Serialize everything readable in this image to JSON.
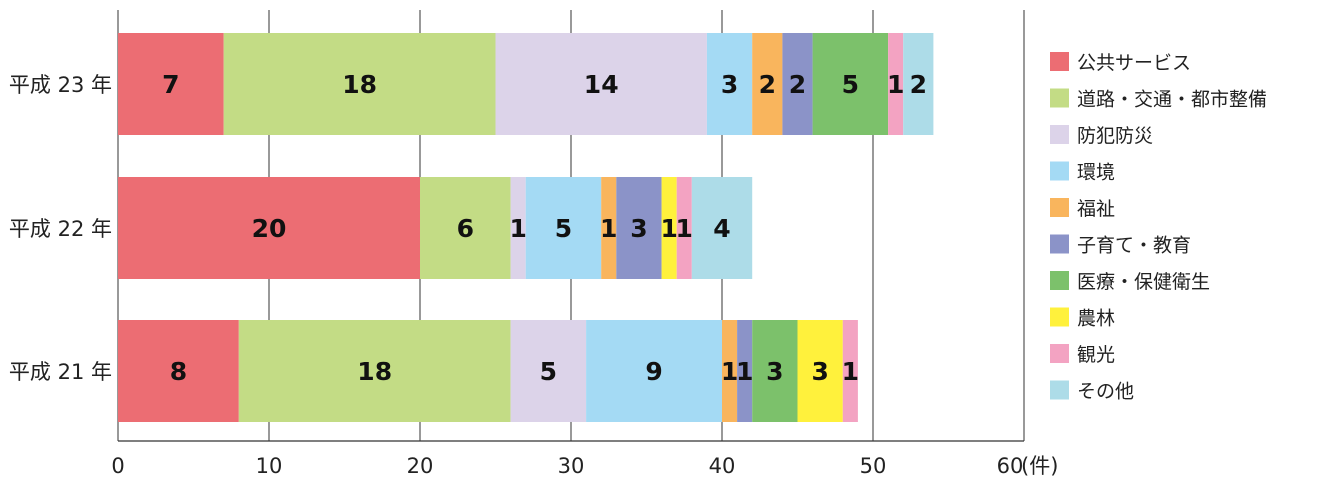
{
  "chart_data": {
    "type": "bar",
    "orientation": "horizontal",
    "stacked": true,
    "categories": [
      "平成 23 年",
      "平成 22 年",
      "平成 21 年"
    ],
    "series": [
      {
        "name": "公共サービス",
        "color": "#ec6d73",
        "values": [
          7,
          20,
          8
        ]
      },
      {
        "name": "道路・交通・都市整備",
        "color": "#c3dc85",
        "values": [
          18,
          6,
          18
        ]
      },
      {
        "name": "防犯防災",
        "color": "#dcd3e9",
        "values": [
          14,
          1,
          5
        ]
      },
      {
        "name": "環境",
        "color": "#a4daf4",
        "values": [
          3,
          5,
          9
        ]
      },
      {
        "name": "福祉",
        "color": "#f9b55d",
        "values": [
          2,
          1,
          1
        ]
      },
      {
        "name": "子育て・教育",
        "color": "#8b93c8",
        "values": [
          2,
          3,
          1
        ]
      },
      {
        "name": "医療・保健衛生",
        "color": "#7cc16b",
        "values": [
          5,
          0,
          3
        ]
      },
      {
        "name": "農林",
        "color": "#fff13c",
        "values": [
          0,
          1,
          3
        ]
      },
      {
        "name": "観光",
        "color": "#f3a3c2",
        "values": [
          1,
          1,
          1
        ]
      },
      {
        "name": "その他",
        "color": "#addce8",
        "values": [
          2,
          4,
          0
        ]
      }
    ],
    "xlim": [
      0,
      60
    ],
    "xticks": [
      "0",
      "10",
      "20",
      "30",
      "40",
      "50",
      "60"
    ],
    "x_unit_label": "(件)",
    "grid": true,
    "legend_position": "right"
  }
}
